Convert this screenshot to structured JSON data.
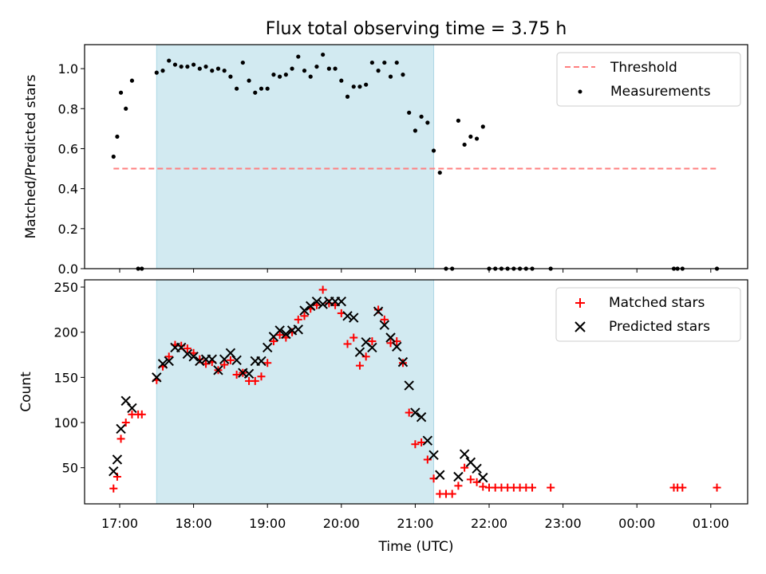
{
  "chart_data": {
    "type": "scatter",
    "title": "Flux total observing time = 3.75 h",
    "xlabel": "Time (UTC)",
    "x_ticks": [
      "17:00",
      "18:00",
      "19:00",
      "20:00",
      "21:00",
      "22:00",
      "23:00",
      "00:00",
      "01:00"
    ],
    "shaded_interval": [
      "17:30",
      "21:15"
    ],
    "colors": {
      "threshold": "#ff7f7f",
      "measurements": "#000000",
      "matched": "#ff0000",
      "predicted": "#000000",
      "shade": "#add8e6"
    },
    "top": {
      "ylabel": "Matched/Predicted stars",
      "ylim": [
        0,
        1.12
      ],
      "yticks": [
        "0.0",
        "0.2",
        "0.4",
        "0.6",
        "0.8",
        "1.0"
      ],
      "legend_position": "upper right",
      "threshold": {
        "name": "Threshold",
        "value": 0.5,
        "x_range": [
          "16:55",
          "01:05"
        ]
      },
      "measurements": {
        "name": "Measurements",
        "points": [
          [
            "16:55",
            0.56
          ],
          [
            "16:58",
            0.66
          ],
          [
            "17:01",
            0.88
          ],
          [
            "17:05",
            0.8
          ],
          [
            "17:10",
            0.94
          ],
          [
            "17:15",
            0.0
          ],
          [
            "17:18",
            0.0
          ],
          [
            "17:30",
            0.98
          ],
          [
            "17:35",
            0.99
          ],
          [
            "17:40",
            1.04
          ],
          [
            "17:45",
            1.02
          ],
          [
            "17:50",
            1.01
          ],
          [
            "17:55",
            1.01
          ],
          [
            "18:00",
            1.02
          ],
          [
            "18:05",
            1.0
          ],
          [
            "18:10",
            1.01
          ],
          [
            "18:15",
            0.99
          ],
          [
            "18:20",
            1.0
          ],
          [
            "18:25",
            0.99
          ],
          [
            "18:30",
            0.96
          ],
          [
            "18:35",
            0.9
          ],
          [
            "18:40",
            1.03
          ],
          [
            "18:45",
            0.94
          ],
          [
            "18:50",
            0.88
          ],
          [
            "18:55",
            0.9
          ],
          [
            "19:00",
            0.9
          ],
          [
            "19:05",
            0.97
          ],
          [
            "19:10",
            0.96
          ],
          [
            "19:15",
            0.97
          ],
          [
            "19:20",
            1.0
          ],
          [
            "19:25",
            1.06
          ],
          [
            "19:30",
            0.99
          ],
          [
            "19:35",
            0.96
          ],
          [
            "19:40",
            1.01
          ],
          [
            "19:45",
            1.07
          ],
          [
            "19:50",
            1.0
          ],
          [
            "19:55",
            1.0
          ],
          [
            "20:00",
            0.94
          ],
          [
            "20:05",
            0.86
          ],
          [
            "20:10",
            0.91
          ],
          [
            "20:15",
            0.91
          ],
          [
            "20:20",
            0.92
          ],
          [
            "20:25",
            1.03
          ],
          [
            "20:30",
            0.99
          ],
          [
            "20:35",
            1.03
          ],
          [
            "20:40",
            0.96
          ],
          [
            "20:45",
            1.03
          ],
          [
            "20:50",
            0.97
          ],
          [
            "20:55",
            0.78
          ],
          [
            "21:00",
            0.69
          ],
          [
            "21:05",
            0.76
          ],
          [
            "21:10",
            0.73
          ],
          [
            "21:15",
            0.59
          ],
          [
            "21:20",
            0.48
          ],
          [
            "21:25",
            0.0
          ],
          [
            "21:30",
            0.0
          ],
          [
            "21:35",
            0.74
          ],
          [
            "21:40",
            0.62
          ],
          [
            "21:45",
            0.66
          ],
          [
            "21:50",
            0.65
          ],
          [
            "21:55",
            0.71
          ],
          [
            "22:00",
            0.0
          ],
          [
            "22:05",
            0.0
          ],
          [
            "22:10",
            0.0
          ],
          [
            "22:15",
            0.0
          ],
          [
            "22:20",
            0.0
          ],
          [
            "22:25",
            0.0
          ],
          [
            "22:30",
            0.0
          ],
          [
            "22:35",
            0.0
          ],
          [
            "22:50",
            0.0
          ],
          [
            "00:30",
            0.0
          ],
          [
            "00:33",
            0.0
          ],
          [
            "00:37",
            0.0
          ],
          [
            "01:05",
            0.0
          ]
        ]
      }
    },
    "bottom": {
      "ylabel": "Count",
      "ylim": [
        10,
        258
      ],
      "yticks": [
        "50",
        "100",
        "150",
        "200",
        "250"
      ],
      "legend_position": "upper right",
      "matched": {
        "name": "Matched stars",
        "points": [
          [
            "16:55",
            27
          ],
          [
            "16:58",
            40
          ],
          [
            "17:01",
            82
          ],
          [
            "17:05",
            100
          ],
          [
            "17:10",
            109
          ],
          [
            "17:15",
            109
          ],
          [
            "17:18",
            109
          ],
          [
            "17:30",
            147
          ],
          [
            "17:35",
            162
          ],
          [
            "17:40",
            173
          ],
          [
            "17:45",
            186
          ],
          [
            "17:50",
            185
          ],
          [
            "17:55",
            182
          ],
          [
            "18:00",
            177
          ],
          [
            "18:05",
            170
          ],
          [
            "18:10",
            165
          ],
          [
            "18:15",
            167
          ],
          [
            "18:20",
            158
          ],
          [
            "18:25",
            164
          ],
          [
            "18:30",
            169
          ],
          [
            "18:35",
            153
          ],
          [
            "18:40",
            155
          ],
          [
            "18:45",
            146
          ],
          [
            "18:50",
            146
          ],
          [
            "18:55",
            151
          ],
          [
            "19:00",
            166
          ],
          [
            "19:05",
            190
          ],
          [
            "19:10",
            197
          ],
          [
            "19:15",
            194
          ],
          [
            "19:20",
            200
          ],
          [
            "19:25",
            214
          ],
          [
            "19:30",
            218
          ],
          [
            "19:35",
            226
          ],
          [
            "19:40",
            230
          ],
          [
            "19:45",
            247
          ],
          [
            "19:50",
            232
          ],
          [
            "19:55",
            230
          ],
          [
            "20:00",
            221
          ],
          [
            "20:05",
            187
          ],
          [
            "20:10",
            194
          ],
          [
            "20:15",
            163
          ],
          [
            "20:20",
            173
          ],
          [
            "20:25",
            190
          ],
          [
            "20:30",
            225
          ],
          [
            "20:35",
            214
          ],
          [
            "20:40",
            188
          ],
          [
            "20:45",
            190
          ],
          [
            "20:50",
            166
          ],
          [
            "20:55",
            111
          ],
          [
            "21:00",
            76
          ],
          [
            "21:05",
            78
          ],
          [
            "21:10",
            59
          ],
          [
            "21:15",
            38
          ],
          [
            "21:20",
            21
          ],
          [
            "21:25",
            21
          ],
          [
            "21:30",
            21
          ],
          [
            "21:35",
            30
          ],
          [
            "21:40",
            50
          ],
          [
            "21:45",
            37
          ],
          [
            "21:50",
            34
          ],
          [
            "21:55",
            29
          ],
          [
            "22:00",
            28
          ],
          [
            "22:05",
            28
          ],
          [
            "22:10",
            28
          ],
          [
            "22:15",
            28
          ],
          [
            "22:20",
            28
          ],
          [
            "22:25",
            28
          ],
          [
            "22:30",
            28
          ],
          [
            "22:35",
            28
          ],
          [
            "22:50",
            28
          ],
          [
            "00:30",
            28
          ],
          [
            "00:33",
            28
          ],
          [
            "00:37",
            28
          ],
          [
            "01:05",
            28
          ]
        ]
      },
      "predicted": {
        "name": "Predicted stars",
        "points": [
          [
            "16:55",
            46
          ],
          [
            "16:58",
            59
          ],
          [
            "17:01",
            93
          ],
          [
            "17:05",
            124
          ],
          [
            "17:10",
            116
          ],
          [
            "17:30",
            150
          ],
          [
            "17:35",
            165
          ],
          [
            "17:40",
            168
          ],
          [
            "17:45",
            183
          ],
          [
            "17:50",
            183
          ],
          [
            "17:55",
            176
          ],
          [
            "18:00",
            173
          ],
          [
            "18:05",
            168
          ],
          [
            "18:10",
            170
          ],
          [
            "18:15",
            170
          ],
          [
            "18:20",
            158
          ],
          [
            "18:25",
            170
          ],
          [
            "18:30",
            177
          ],
          [
            "18:35",
            169
          ],
          [
            "18:40",
            155
          ],
          [
            "18:45",
            154
          ],
          [
            "18:50",
            168
          ],
          [
            "18:55",
            168
          ],
          [
            "19:00",
            183
          ],
          [
            "19:05",
            195
          ],
          [
            "19:10",
            202
          ],
          [
            "19:15",
            198
          ],
          [
            "19:20",
            202
          ],
          [
            "19:25",
            203
          ],
          [
            "19:30",
            224
          ],
          [
            "19:35",
            229
          ],
          [
            "19:40",
            234
          ],
          [
            "19:45",
            231
          ],
          [
            "19:50",
            234
          ],
          [
            "19:55",
            234
          ],
          [
            "20:00",
            234
          ],
          [
            "20:05",
            218
          ],
          [
            "20:10",
            216
          ],
          [
            "20:15",
            178
          ],
          [
            "20:20",
            189
          ],
          [
            "20:25",
            183
          ],
          [
            "20:30",
            223
          ],
          [
            "20:35",
            208
          ],
          [
            "20:40",
            194
          ],
          [
            "20:45",
            184
          ],
          [
            "20:50",
            167
          ],
          [
            "20:55",
            141
          ],
          [
            "21:00",
            111
          ],
          [
            "21:05",
            106
          ],
          [
            "21:10",
            80
          ],
          [
            "21:15",
            64
          ],
          [
            "21:20",
            42
          ],
          [
            "21:35",
            40
          ],
          [
            "21:40",
            65
          ],
          [
            "21:45",
            56
          ],
          [
            "21:50",
            49
          ],
          [
            "21:55",
            39
          ]
        ]
      }
    }
  }
}
